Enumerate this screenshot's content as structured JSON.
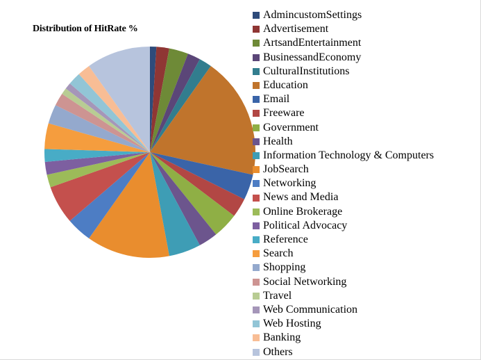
{
  "chart_data": {
    "type": "pie",
    "title": "Distribution of HitRate %",
    "legend_position": "right",
    "series": [
      {
        "name": "AdmincustomSettings",
        "value": 1,
        "color": "#2E4B7A"
      },
      {
        "name": "Advertisement",
        "value": 2,
        "color": "#8F3634"
      },
      {
        "name": "ArtsandEntertainment",
        "value": 3,
        "color": "#6E8A37"
      },
      {
        "name": "BusinessandEconomy",
        "value": 2,
        "color": "#5B4678"
      },
      {
        "name": "CulturalInstitutions",
        "value": 2,
        "color": "#327D8E"
      },
      {
        "name": "Education",
        "value": 19,
        "color": "#C0742C"
      },
      {
        "name": "Email",
        "value": 4,
        "color": "#3A64A8"
      },
      {
        "name": "Freeware",
        "value": 3,
        "color": "#B24744"
      },
      {
        "name": "Government",
        "value": 4,
        "color": "#8FAF45"
      },
      {
        "name": "Health",
        "value": 3,
        "color": "#6C558D"
      },
      {
        "name": "Information Technology & Computers",
        "value": 5,
        "color": "#3E9DB5"
      },
      {
        "name": "JobSearch",
        "value": 13,
        "color": "#E98D2E"
      },
      {
        "name": "Networking",
        "value": 4,
        "color": "#4D7DC4"
      },
      {
        "name": "News and Media",
        "value": 6,
        "color": "#C4504D"
      },
      {
        "name": "Online Brokerage",
        "value": 2,
        "color": "#9CBB59"
      },
      {
        "name": "Political Advocacy",
        "value": 2,
        "color": "#7D5FA0"
      },
      {
        "name": "Reference",
        "value": 2,
        "color": "#48ACC6"
      },
      {
        "name": "Search",
        "value": 4,
        "color": "#F59D3E"
      },
      {
        "name": "Shopping",
        "value": 3,
        "color": "#94A9CD"
      },
      {
        "name": "Social Networking",
        "value": 2,
        "color": "#CD9492"
      },
      {
        "name": "Travel",
        "value": 1,
        "color": "#B8CC93"
      },
      {
        "name": "Web Communication",
        "value": 1,
        "color": "#A596B9"
      },
      {
        "name": "Web Hosting",
        "value": 2,
        "color": "#92C5D6"
      },
      {
        "name": "Banking",
        "value": 2,
        "color": "#F8BD95"
      },
      {
        "name": "Others",
        "value": 10,
        "color": "#B7C4DD"
      }
    ]
  }
}
